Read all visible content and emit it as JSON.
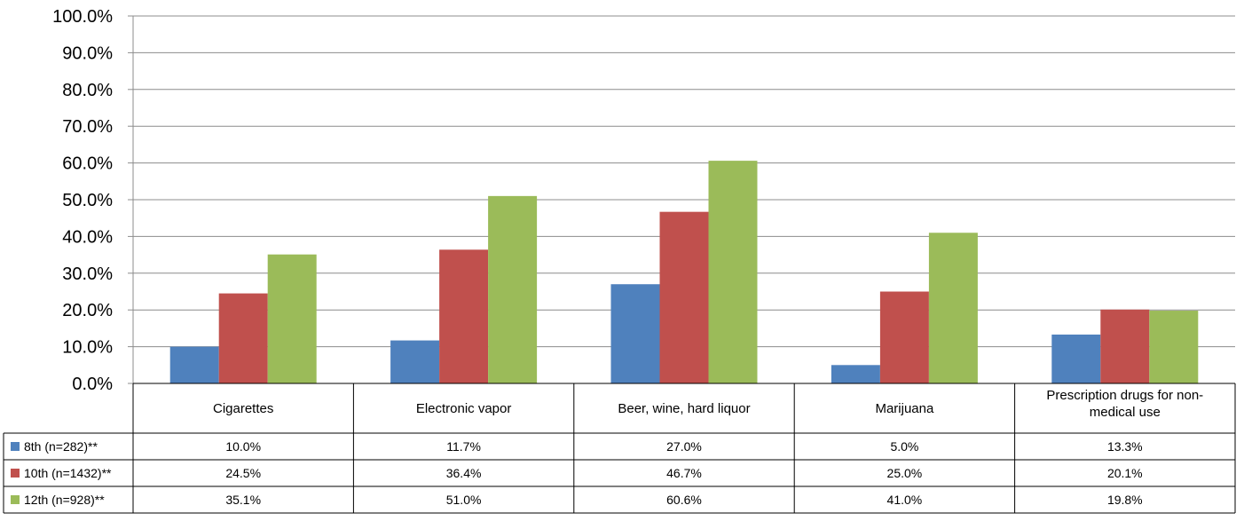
{
  "chart_data": {
    "type": "bar",
    "categories": [
      "Cigarettes",
      "Electronic vapor",
      "Beer, wine, hard liquor",
      "Marijuana",
      [
        "Prescription drugs for non-",
        "medical use"
      ]
    ],
    "series": [
      {
        "name": "8th (n=282)**",
        "color": "#4f81bd",
        "values": [
          10.0,
          11.7,
          27.0,
          5.0,
          13.3
        ],
        "labels": [
          "10.0%",
          "11.7%",
          "27.0%",
          "5.0%",
          "13.3%"
        ]
      },
      {
        "name": "10th (n=1432)**",
        "color": "#c0504d",
        "values": [
          24.5,
          36.4,
          46.7,
          25.0,
          20.1
        ],
        "labels": [
          "24.5%",
          "36.4%",
          "46.7%",
          "25.0%",
          "20.1%"
        ]
      },
      {
        "name": "12th (n=928)**",
        "color": "#9bbb59",
        "values": [
          35.1,
          51.0,
          60.6,
          41.0,
          19.8
        ],
        "labels": [
          "35.1%",
          "51.0%",
          "60.6%",
          "41.0%",
          "19.8%"
        ]
      }
    ],
    "ylim": [
      0,
      100
    ],
    "yticks": [
      "0.0%",
      "10.0%",
      "20.0%",
      "30.0%",
      "40.0%",
      "50.0%",
      "60.0%",
      "70.0%",
      "80.0%",
      "90.0%",
      "100.0%"
    ],
    "grid": true,
    "legend": "data-table"
  }
}
